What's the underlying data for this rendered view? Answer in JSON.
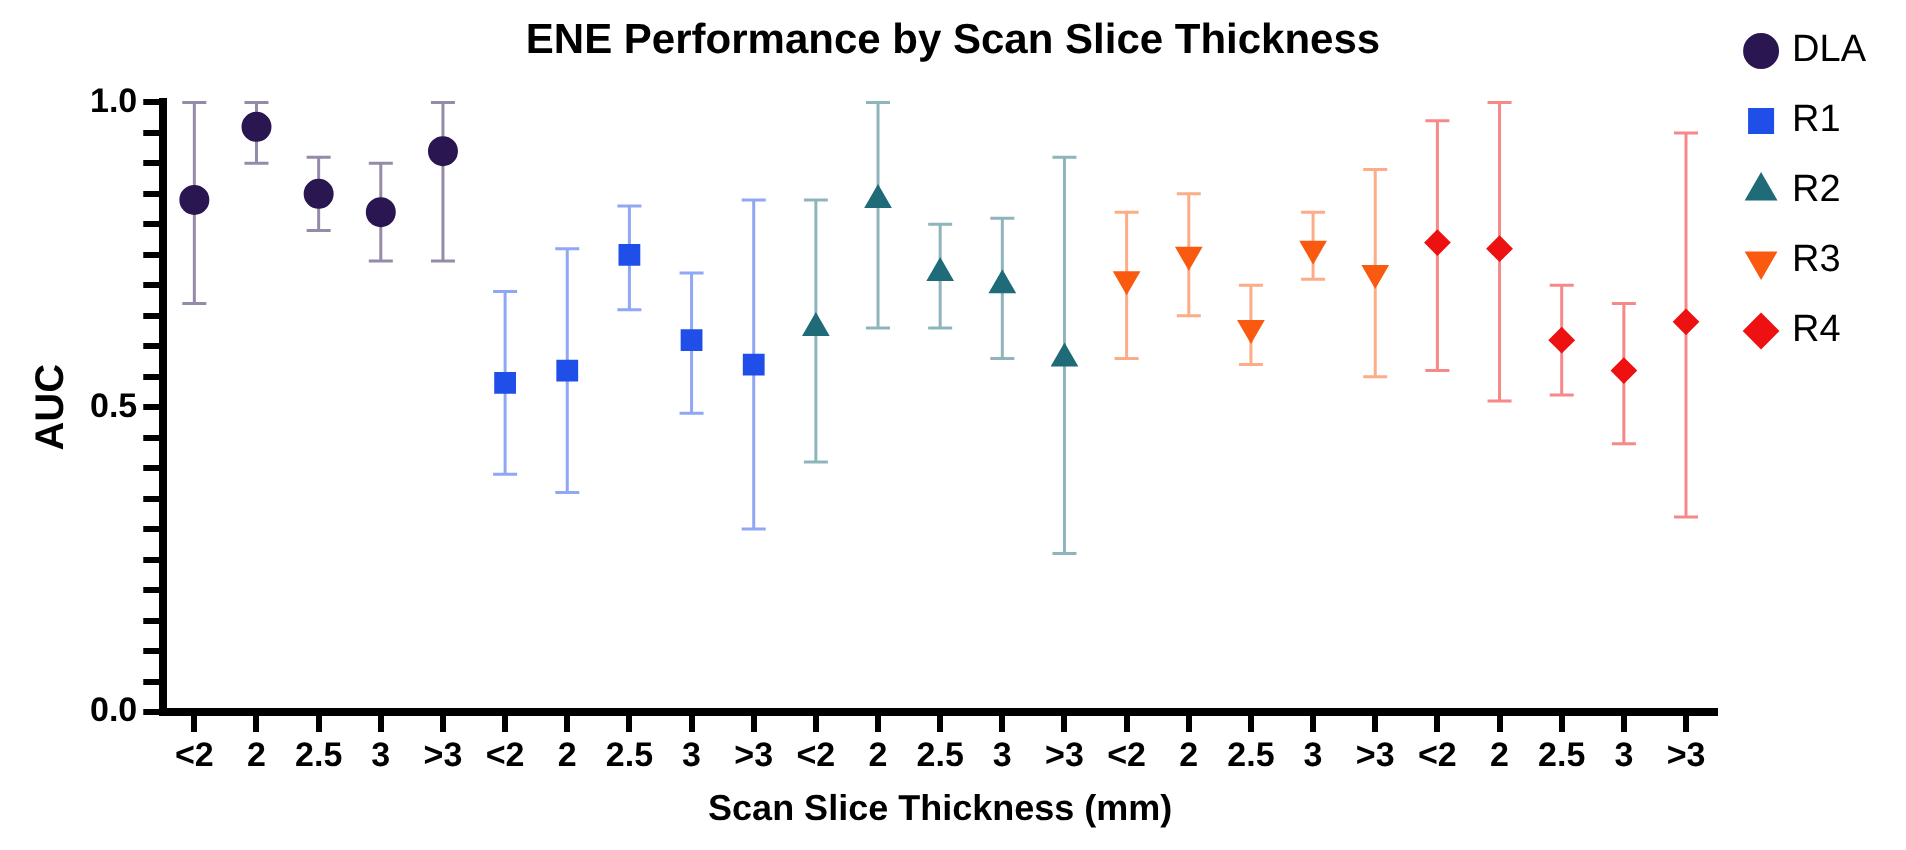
{
  "chart_data": {
    "type": "scatter",
    "title": "ENE Performance by Scan Slice Thickness",
    "xlabel": "Scan Slice Thickness (mm)",
    "ylabel": "AUC",
    "categories": [
      "<2",
      "2",
      "2.5",
      "3",
      ">3",
      "<2",
      "2",
      "2.5",
      "3",
      ">3",
      "<2",
      "2",
      "2.5",
      "3",
      ">3",
      "<2",
      "2",
      "2.5",
      "3",
      ">3",
      "<2",
      "2",
      "2.5",
      "3",
      ">3"
    ],
    "ylim": [
      0,
      1
    ],
    "yticks": [
      {
        "value": 0,
        "label": "0.0"
      },
      {
        "value": 0.05,
        "label": null
      },
      {
        "value": 0.1,
        "label": null
      },
      {
        "value": 0.15,
        "label": null
      },
      {
        "value": 0.2,
        "label": null
      },
      {
        "value": 0.25,
        "label": null
      },
      {
        "value": 0.3,
        "label": null
      },
      {
        "value": 0.35,
        "label": null
      },
      {
        "value": 0.4,
        "label": null
      },
      {
        "value": 0.45,
        "label": null
      },
      {
        "value": 0.5,
        "label": "0.5"
      },
      {
        "value": 0.55,
        "label": null
      },
      {
        "value": 0.6,
        "label": null
      },
      {
        "value": 0.65,
        "label": null
      },
      {
        "value": 0.7,
        "label": null
      },
      {
        "value": 0.75,
        "label": null
      },
      {
        "value": 0.8,
        "label": null
      },
      {
        "value": 0.85,
        "label": null
      },
      {
        "value": 0.9,
        "label": null
      },
      {
        "value": 0.95,
        "label": null
      },
      {
        "value": 1,
        "label": "1.0"
      }
    ],
    "grid": false,
    "legend": "right",
    "series": [
      {
        "name": "DLA",
        "color": "#2a1650",
        "marker": "circle",
        "values": [
          0.84,
          0.96,
          0.85,
          0.82,
          0.92,
          null,
          null,
          null,
          null,
          null,
          null,
          null,
          null,
          null,
          null,
          null,
          null,
          null,
          null,
          null,
          null,
          null,
          null,
          null,
          null
        ],
        "errors": [
          [
            0.67,
            1.0
          ],
          [
            0.9,
            1.0
          ],
          [
            0.79,
            0.91
          ],
          [
            0.74,
            0.9
          ],
          [
            0.74,
            1.0
          ],
          null,
          null,
          null,
          null,
          null,
          null,
          null,
          null,
          null,
          null,
          null,
          null,
          null,
          null,
          null,
          null,
          null,
          null,
          null,
          null
        ]
      },
      {
        "name": "R1",
        "color": "#1f4fe8",
        "marker": "square",
        "values": [
          null,
          null,
          null,
          null,
          null,
          0.54,
          0.56,
          0.75,
          0.61,
          0.57,
          null,
          null,
          null,
          null,
          null,
          null,
          null,
          null,
          null,
          null,
          null,
          null,
          null,
          null,
          null
        ],
        "errors": [
          null,
          null,
          null,
          null,
          null,
          [
            0.39,
            0.69
          ],
          [
            0.36,
            0.76
          ],
          [
            0.66,
            0.83
          ],
          [
            0.49,
            0.72
          ],
          [
            0.3,
            0.84
          ],
          null,
          null,
          null,
          null,
          null,
          null,
          null,
          null,
          null,
          null,
          null,
          null,
          null,
          null,
          null
        ]
      },
      {
        "name": "R2",
        "color": "#1f6b78",
        "marker": "triangle",
        "values": [
          null,
          null,
          null,
          null,
          null,
          null,
          null,
          null,
          null,
          null,
          0.63,
          0.84,
          0.72,
          0.7,
          0.58,
          null,
          null,
          null,
          null,
          null,
          null,
          null,
          null,
          null,
          null
        ],
        "errors": [
          null,
          null,
          null,
          null,
          null,
          null,
          null,
          null,
          null,
          null,
          [
            0.41,
            0.84
          ],
          [
            0.63,
            1.0
          ],
          [
            0.63,
            0.8
          ],
          [
            0.58,
            0.81
          ],
          [
            0.26,
            0.91
          ],
          null,
          null,
          null,
          null,
          null,
          null,
          null,
          null,
          null,
          null
        ]
      },
      {
        "name": "R3",
        "color": "#f95a10",
        "marker": "triangle-down",
        "values": [
          null,
          null,
          null,
          null,
          null,
          null,
          null,
          null,
          null,
          null,
          null,
          null,
          null,
          null,
          null,
          0.71,
          0.75,
          0.63,
          0.76,
          0.72,
          null,
          null,
          null,
          null,
          null
        ],
        "errors": [
          null,
          null,
          null,
          null,
          null,
          null,
          null,
          null,
          null,
          null,
          null,
          null,
          null,
          null,
          null,
          [
            0.58,
            0.82
          ],
          [
            0.65,
            0.85
          ],
          [
            0.57,
            0.7
          ],
          [
            0.71,
            0.82
          ],
          [
            0.55,
            0.89
          ],
          null,
          null,
          null,
          null,
          null
        ]
      },
      {
        "name": "R4",
        "color": "#ee1111",
        "marker": "diamond",
        "values": [
          null,
          null,
          null,
          null,
          null,
          null,
          null,
          null,
          null,
          null,
          null,
          null,
          null,
          null,
          null,
          null,
          null,
          null,
          null,
          null,
          0.77,
          0.76,
          0.61,
          0.56,
          0.64
        ],
        "errors": [
          null,
          null,
          null,
          null,
          null,
          null,
          null,
          null,
          null,
          null,
          null,
          null,
          null,
          null,
          null,
          null,
          null,
          null,
          null,
          null,
          [
            0.56,
            0.97
          ],
          [
            0.51,
            1.0
          ],
          [
            0.52,
            0.7
          ],
          [
            0.44,
            0.67
          ],
          [
            0.32,
            0.95
          ]
        ]
      }
    ]
  }
}
